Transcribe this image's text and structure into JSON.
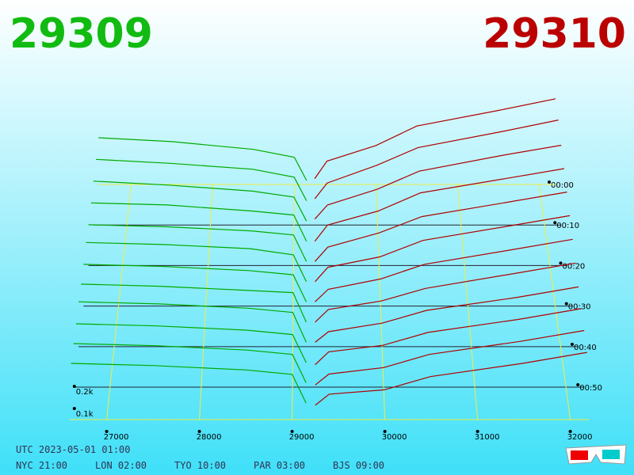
{
  "chart_data": {
    "type": "depth3d",
    "bid_label": "29309",
    "ask_label": "29310",
    "bid_color": "#00aa00",
    "ask_color": "#b00000",
    "bid_prices": [
      26600,
      27500,
      28500,
      29000,
      29150
    ],
    "ask_prices": [
      29250,
      29400,
      30000,
      30500,
      31500,
      32200
    ],
    "slices": [
      {
        "t": 0,
        "bid": [
          0.24,
          0.22,
          0.18,
          0.14,
          0.02
        ],
        "ask": [
          0.03,
          0.12,
          0.2,
          0.3,
          0.38,
          0.44
        ]
      },
      {
        "t": 5,
        "bid": [
          0.23,
          0.21,
          0.18,
          0.14,
          0.02
        ],
        "ask": [
          0.03,
          0.11,
          0.2,
          0.29,
          0.37,
          0.43
        ]
      },
      {
        "t": 10,
        "bid": [
          0.22,
          0.2,
          0.17,
          0.14,
          0.02
        ],
        "ask": [
          0.03,
          0.1,
          0.18,
          0.27,
          0.35,
          0.4
        ]
      },
      {
        "t": 15,
        "bid": [
          0.21,
          0.2,
          0.17,
          0.15,
          0.02
        ],
        "ask": [
          0.02,
          0.1,
          0.17,
          0.26,
          0.33,
          0.38
        ]
      },
      {
        "t": 20,
        "bid": [
          0.2,
          0.19,
          0.17,
          0.15,
          0.02
        ],
        "ask": [
          0.02,
          0.09,
          0.16,
          0.24,
          0.31,
          0.36
        ]
      },
      {
        "t": 25,
        "bid": [
          0.21,
          0.2,
          0.18,
          0.15,
          0.02
        ],
        "ask": [
          0.02,
          0.09,
          0.14,
          0.22,
          0.29,
          0.34
        ]
      },
      {
        "t": 30,
        "bid": [
          0.2,
          0.19,
          0.17,
          0.15,
          0.02
        ],
        "ask": [
          0.02,
          0.08,
          0.13,
          0.2,
          0.27,
          0.32
        ]
      },
      {
        "t": 35,
        "bid": [
          0.2,
          0.19,
          0.17,
          0.16,
          0.02
        ],
        "ask": [
          0.02,
          0.08,
          0.12,
          0.18,
          0.25,
          0.3
        ]
      },
      {
        "t": 40,
        "bid": [
          0.21,
          0.2,
          0.18,
          0.16,
          0.02
        ],
        "ask": [
          0.02,
          0.07,
          0.11,
          0.17,
          0.23,
          0.28
        ]
      },
      {
        "t": 45,
        "bid": [
          0.2,
          0.19,
          0.17,
          0.15,
          0.02
        ],
        "ask": [
          0.01,
          0.07,
          0.1,
          0.16,
          0.22,
          0.27
        ]
      },
      {
        "t": 50,
        "bid": [
          0.2,
          0.19,
          0.17,
          0.15,
          0.02
        ],
        "ask": [
          0.01,
          0.06,
          0.09,
          0.15,
          0.21,
          0.26
        ]
      },
      {
        "t": 55,
        "bid": [
          0.2,
          0.19,
          0.17,
          0.15,
          0.02
        ],
        "ask": [
          0.01,
          0.06,
          0.08,
          0.14,
          0.2,
          0.25
        ]
      }
    ],
    "xlim": [
      26600,
      32200
    ],
    "xticks": [
      27000,
      28000,
      29000,
      30000,
      31000,
      32000
    ],
    "tlim": [
      0,
      58
    ],
    "tticks": [
      {
        "value": 0,
        "label": "00:00"
      },
      {
        "value": 10,
        "label": "00:10"
      },
      {
        "value": 20,
        "label": "00:20"
      },
      {
        "value": 30,
        "label": "00:30"
      },
      {
        "value": 40,
        "label": "00:40"
      },
      {
        "value": 50,
        "label": "00:50"
      }
    ],
    "zticks": [
      {
        "value": 0.1,
        "label": "0.1k"
      },
      {
        "value": 0.2,
        "label": "0.2k"
      }
    ],
    "footer": {
      "utc": "UTC 2023-05-01 01:00",
      "nyc": "NYC 21:00",
      "lon": "LON 02:00",
      "tyo": "TYO 10:00",
      "par": "PAR 03:00",
      "bjs": "BJS 09:00"
    }
  }
}
